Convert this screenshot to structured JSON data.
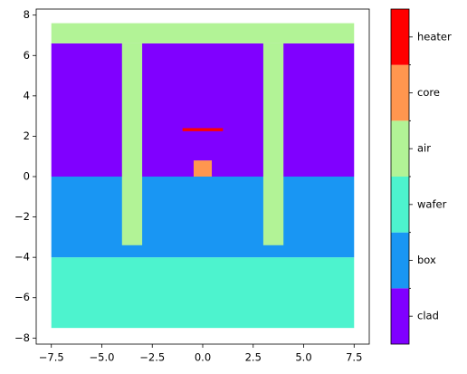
{
  "chart_data": {
    "type": "regions",
    "xlim": [
      -8.25,
      8.25
    ],
    "ylim": [
      -8.3,
      8.3
    ],
    "xticks": [
      {
        "value": -7.5,
        "label": "−7.5"
      },
      {
        "value": -5,
        "label": "−5.0"
      },
      {
        "value": -2.5,
        "label": "−2.5"
      },
      {
        "value": 0,
        "label": "0.0"
      },
      {
        "value": 2.5,
        "label": "2.5"
      },
      {
        "value": 5,
        "label": "5.0"
      },
      {
        "value": 7.5,
        "label": "7.5"
      }
    ],
    "yticks": [
      {
        "value": -8,
        "label": "−8"
      },
      {
        "value": -6,
        "label": "−6"
      },
      {
        "value": -4,
        "label": "−4"
      },
      {
        "value": -2,
        "label": "−2"
      },
      0,
      2,
      4,
      6,
      8
    ],
    "regions": [
      {
        "material": "wafer",
        "x": [
          -7.5,
          7.5
        ],
        "y": [
          -7.5,
          -4
        ]
      },
      {
        "material": "box",
        "x": [
          -7.5,
          7.5
        ],
        "y": [
          -4,
          0
        ]
      },
      {
        "material": "clad",
        "x": [
          -7.5,
          7.5
        ],
        "y": [
          0,
          6.6
        ]
      },
      {
        "material": "air",
        "x": [
          -7.5,
          7.5
        ],
        "y": [
          6.6,
          7.6
        ]
      },
      {
        "material": "air",
        "x": [
          -4,
          -3
        ],
        "y": [
          -3.4,
          6.6
        ]
      },
      {
        "material": "air",
        "x": [
          3,
          4
        ],
        "y": [
          -3.4,
          6.6
        ]
      },
      {
        "material": "core",
        "x": [
          -0.45,
          0.45
        ],
        "y": [
          0,
          0.8
        ]
      },
      {
        "material": "heater",
        "x": [
          -1,
          1
        ],
        "y": [
          2.25,
          2.4
        ]
      }
    ],
    "colorbar": {
      "labels": [
        "clad",
        "box",
        "wafer",
        "air",
        "core",
        "heater"
      ],
      "colors": [
        "#8000ff",
        "#1996f3",
        "#4df3ce",
        "#b2f396",
        "#ff964f",
        "#ff0000"
      ]
    }
  }
}
